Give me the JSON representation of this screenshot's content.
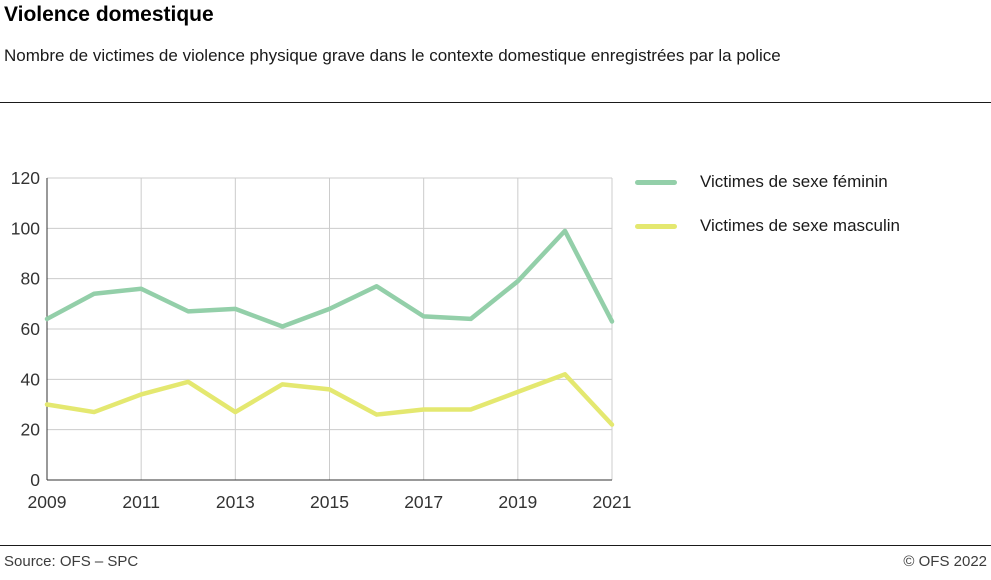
{
  "header": {
    "title": "Violence domestique",
    "subtitle": "Nombre de victimes de violence physique grave dans le contexte domestique enregistrées par la police"
  },
  "footer": {
    "source": "Source: OFS – SPC",
    "copyright": "© OFS 2022"
  },
  "colors": {
    "grid": "#cccccc",
    "axis": "#333333",
    "tick_text": "#333333"
  },
  "chart_data": {
    "type": "line",
    "title": "Violence domestique",
    "xlabel": "",
    "ylabel": "",
    "x": [
      2009,
      2010,
      2011,
      2012,
      2013,
      2014,
      2015,
      2016,
      2017,
      2018,
      2019,
      2020,
      2021
    ],
    "series": [
      {
        "name": "Victimes de sexe féminin",
        "color": "#93cfa9",
        "values": [
          64,
          74,
          76,
          67,
          68,
          61,
          68,
          77,
          65,
          64,
          79,
          99,
          63
        ]
      },
      {
        "name": "Victimes de sexe masculin",
        "color": "#e4e870",
        "values": [
          30,
          27,
          34,
          39,
          27,
          38,
          36,
          26,
          28,
          28,
          35,
          42,
          22
        ]
      }
    ],
    "ylim": [
      0,
      120
    ],
    "y_ticks": [
      0,
      20,
      40,
      60,
      80,
      100,
      120
    ],
    "x_tick_values": [
      2009,
      2011,
      2013,
      2015,
      2017,
      2019,
      2021
    ],
    "x_tick_labels": [
      "2009",
      "2011",
      "2013",
      "2015",
      "2017",
      "2019",
      "2021"
    ],
    "grid": true,
    "legend_position": "top-right"
  }
}
